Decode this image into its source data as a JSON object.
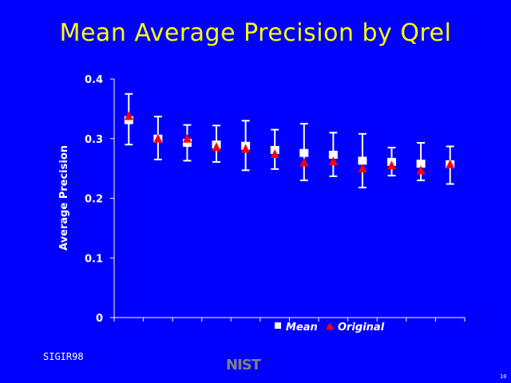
{
  "slide": {
    "footer_left": "SIGIR98",
    "logo_text": "NIST",
    "page_number": "10",
    "background_color": "#0000FF",
    "title_color": "#FFFF00"
  },
  "chart_data": {
    "type": "scatter",
    "title": "Mean Average Precision by Qrel",
    "xlabel": "",
    "ylabel": "Average Precision",
    "ylim": [
      0,
      0.4
    ],
    "yticks": [
      0,
      0.1,
      0.2,
      0.3,
      0.4
    ],
    "ytick_labels": [
      "0",
      "0.1",
      "0.2",
      "0.3",
      "0.4"
    ],
    "categories": [
      "1",
      "2",
      "3",
      "4",
      "5",
      "6",
      "7",
      "8",
      "9",
      "10",
      "11",
      "12"
    ],
    "x_tick_labels_visible": false,
    "grid": false,
    "legend": "bottom-center",
    "series": [
      {
        "name": "Mean",
        "marker": "square",
        "color": "#FFFFFF",
        "values": [
          0.331,
          0.3,
          0.293,
          0.29,
          0.288,
          0.281,
          0.276,
          0.273,
          0.263,
          0.261,
          0.258,
          0.257
        ],
        "error_high": [
          0.375,
          0.337,
          0.323,
          0.322,
          0.33,
          0.315,
          0.325,
          0.31,
          0.308,
          0.285,
          0.293,
          0.287
        ],
        "error_low": [
          0.29,
          0.265,
          0.263,
          0.261,
          0.247,
          0.249,
          0.23,
          0.237,
          0.218,
          0.238,
          0.23,
          0.224
        ]
      },
      {
        "name": "Original",
        "marker": "triangle",
        "color": "#FF0000",
        "values": [
          0.338,
          0.3,
          0.3,
          0.286,
          0.283,
          0.274,
          0.26,
          0.262,
          0.25,
          0.255,
          0.247,
          0.257
        ]
      }
    ]
  }
}
